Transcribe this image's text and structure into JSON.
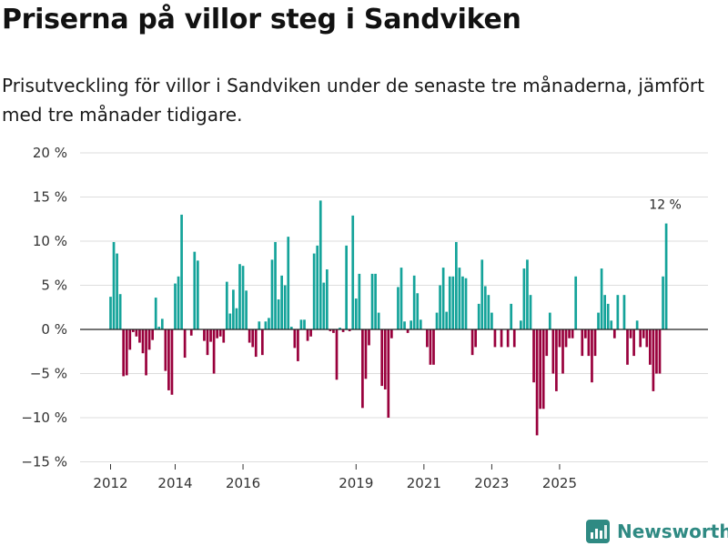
{
  "title": "Priserna på villor steg i Sandviken",
  "subtitle": "Prisutveckling för villor i Sandviken under de senaste tre månaderna, jämfört med tre månader tidigare.",
  "brand": "Newsworthy",
  "colors": {
    "positive": "#14a39a",
    "negative": "#99003c",
    "grid": "#dddddd",
    "zero_line": "#222222",
    "brand": "#2f8a83"
  },
  "chart_data": {
    "type": "bar",
    "title": "Priserna på villor steg i Sandviken",
    "xlabel": "",
    "ylabel": "",
    "ylim": [
      -15,
      20
    ],
    "yticks": [
      20,
      15,
      10,
      5,
      0,
      -5,
      -10,
      -15
    ],
    "ytick_labels": [
      "20 %",
      "15 %",
      "10 %",
      "5 %",
      "0 %",
      "−5 %",
      "−10 %",
      "−15 %"
    ],
    "xticks": [
      {
        "label": "2012",
        "index": 0
      },
      {
        "label": "2014",
        "index": 20
      },
      {
        "label": "2016",
        "index": 41
      },
      {
        "label": "2019",
        "index": 76
      },
      {
        "label": "2021",
        "index": 97
      },
      {
        "label": "2023",
        "index": 118
      },
      {
        "label": "2025",
        "index": 139
      }
    ],
    "start": "2012-01",
    "frequency": "monthly",
    "last_label": "12 %",
    "values": [
      3.7,
      9.9,
      8.6,
      4.0,
      -5.3,
      -5.2,
      -2.3,
      -0.3,
      -0.8,
      -1.5,
      -2.7,
      -5.2,
      -2.3,
      -1.2,
      3.6,
      0.3,
      1.2,
      -4.7,
      -6.9,
      -7.4,
      5.2,
      6.0,
      13.0,
      -3.2,
      0.0,
      -0.7,
      8.8,
      7.8,
      0.0,
      -1.3,
      -2.9,
      -1.4,
      -5.0,
      -1.0,
      -0.8,
      -1.5,
      5.4,
      1.8,
      4.5,
      2.4,
      7.4,
      7.2,
      4.4,
      -1.5,
      -2.0,
      -3.1,
      0.9,
      -2.9,
      0.9,
      1.3,
      7.9,
      9.9,
      3.4,
      6.1,
      5.0,
      10.5,
      0.3,
      -2.1,
      -3.6,
      1.1,
      1.1,
      -1.3,
      -0.8,
      8.6,
      9.5,
      14.6,
      5.3,
      6.8,
      -0.2,
      -0.4,
      -5.7,
      0.2,
      -0.3,
      9.5,
      -0.2,
      12.9,
      3.5,
      6.3,
      -8.9,
      -5.6,
      -1.8,
      6.3,
      6.3,
      1.9,
      -6.4,
      -6.8,
      -10.0,
      -1.0,
      0.0,
      4.8,
      7.0,
      0.9,
      -0.4,
      1.0,
      6.1,
      4.1,
      1.1,
      0.0,
      -2.0,
      -4.0,
      -4.0,
      1.9,
      5.0,
      7.0,
      2.0,
      6.0,
      6.0,
      9.9,
      7.0,
      6.0,
      5.8,
      0.0,
      -2.9,
      -2.0,
      2.9,
      7.9,
      4.9,
      3.9,
      1.9,
      -2.0,
      0.0,
      -2.0,
      0.0,
      -2.0,
      2.9,
      -2.0,
      0.0,
      1.0,
      6.9,
      7.9,
      3.9,
      -6.0,
      -12.0,
      -9.0,
      -9.0,
      -3.0,
      1.9,
      -5.0,
      -7.0,
      -2.0,
      -5.0,
      -2.0,
      -1.0,
      -1.0,
      6.0,
      0.0,
      -3.0,
      -1.0,
      -3.0,
      -6.0,
      -3.0,
      1.9,
      6.9,
      3.9,
      2.9,
      1.0,
      -1.0,
      3.9,
      0.0,
      3.9,
      -4.0,
      -1.0,
      -3.0,
      1.0,
      -2.0,
      -1.0,
      -2.0,
      -4.0,
      -7.0,
      -5.0,
      -5.0,
      6.0,
      12.0
    ]
  }
}
